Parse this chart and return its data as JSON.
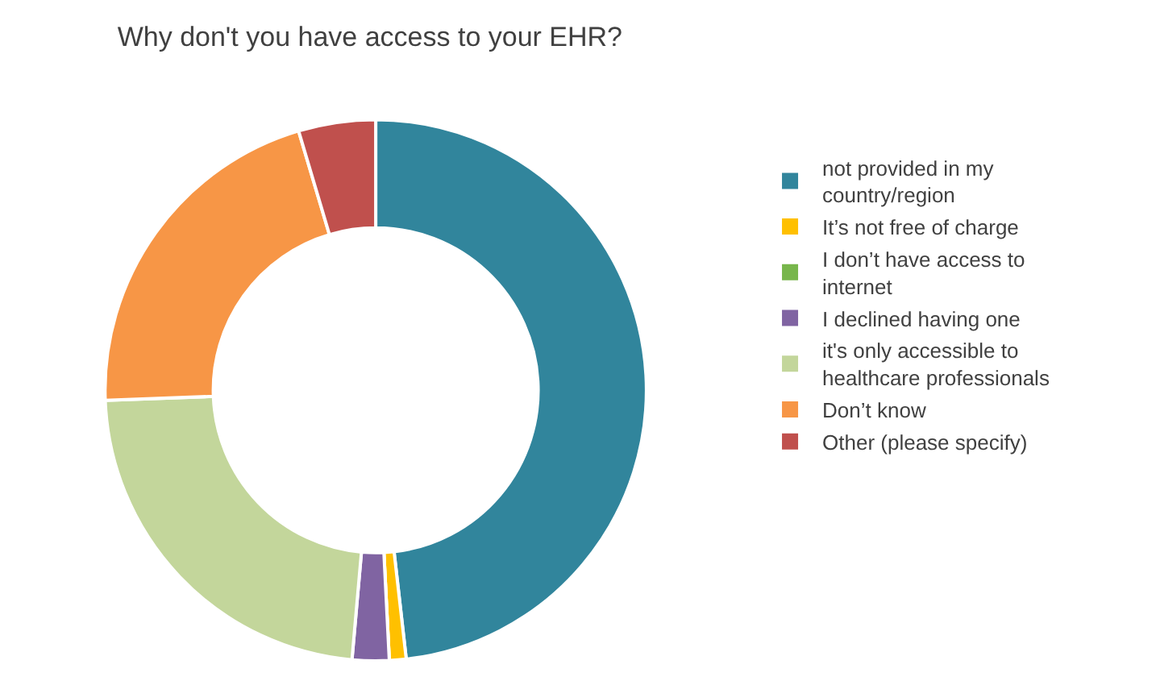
{
  "chart_data": {
    "type": "donut",
    "title": "Why don't you have access to your EHR?",
    "categories": [
      "not provided in my country/region",
      "It’s not free of charge",
      "I don’t have access to internet",
      "I declined having one",
      "it's only accessible to healthcare professionals",
      "Don’t know",
      "Other (please specify)"
    ],
    "values": [
      48.2,
      1,
      0,
      2.2,
      23,
      21,
      4.6
    ],
    "colors": [
      "#31859c",
      "#ffc000",
      "#77b64b",
      "#8064a2",
      "#c3d69b",
      "#f79646",
      "#c0504d"
    ],
    "legend": "right"
  }
}
